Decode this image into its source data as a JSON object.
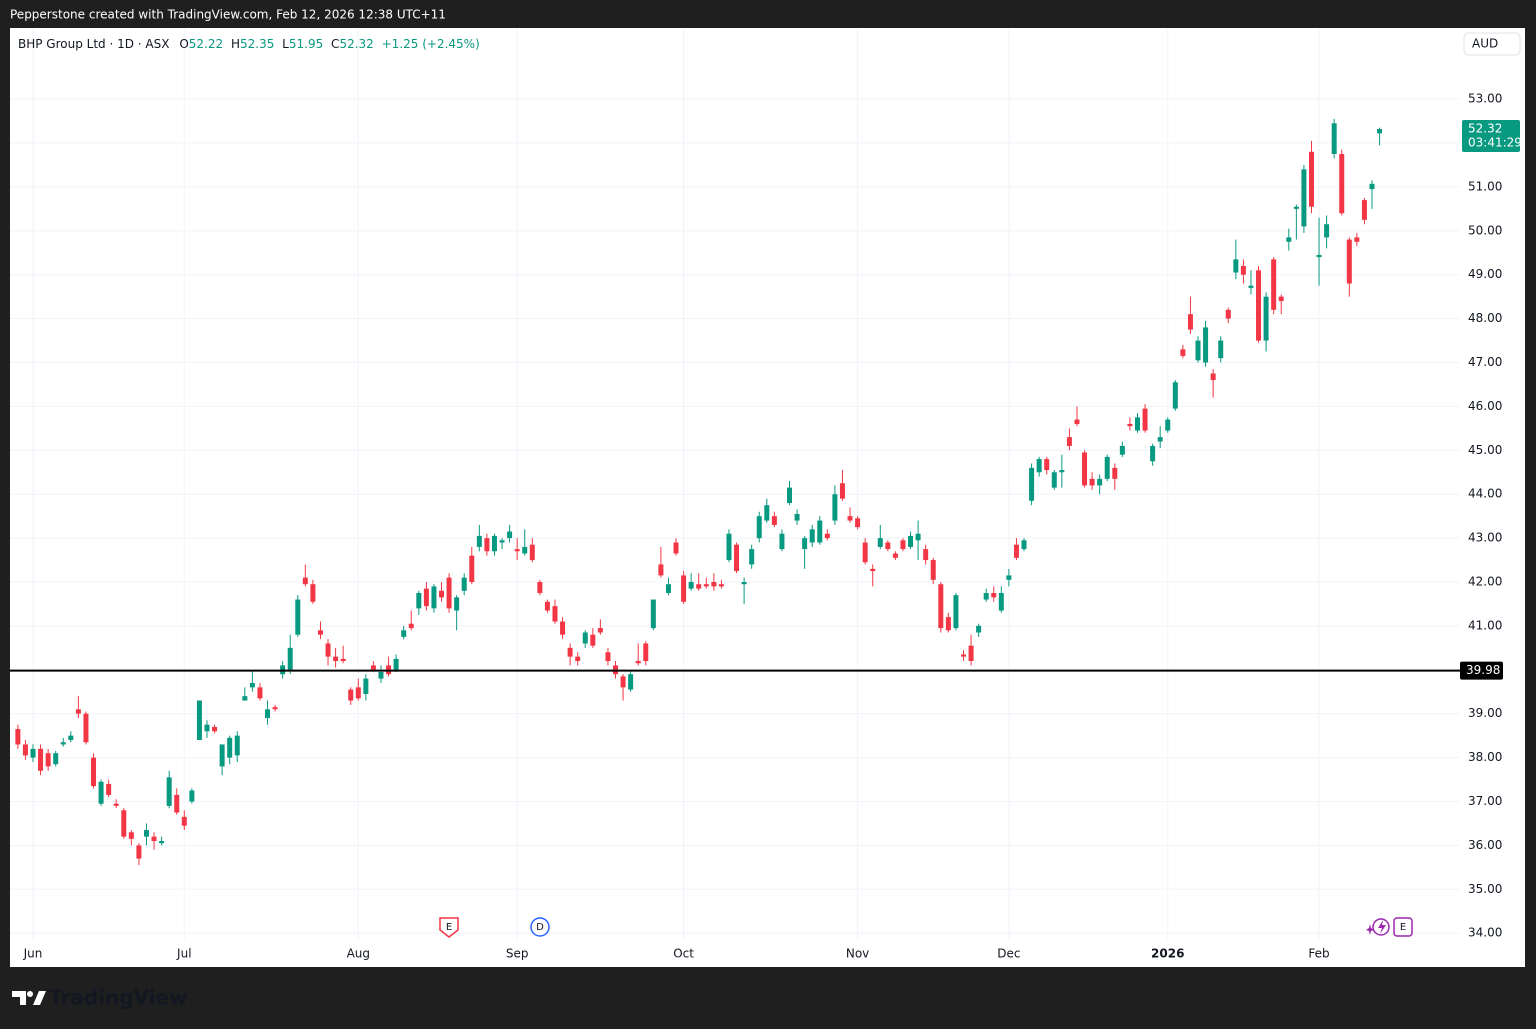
{
  "banner": "Pepperstone created with TradingView.com, Feb 12, 2026 12:38 UTC+11",
  "watermark": "TradingView",
  "chart_data": {
    "type": "candlestick",
    "title": "BHP Group Ltd · 1D · ASX",
    "legend_labels": {
      "open": "O",
      "high": "H",
      "low": "L",
      "close": "C"
    },
    "change": "+1.25 (+2.45%)",
    "currency": "AUD",
    "countdown": "03:41:29",
    "up_color": "#089981",
    "down_color": "#f23645",
    "grid": true,
    "categories": [
      null,
      null,
      "Jun",
      null,
      null,
      null,
      null,
      null,
      null,
      null,
      null,
      null,
      null,
      null,
      null,
      null,
      null,
      null,
      null,
      null,
      null,
      null,
      "Jul",
      null,
      null,
      null,
      null,
      null,
      null,
      null,
      null,
      null,
      null,
      null,
      null,
      null,
      null,
      null,
      null,
      null,
      null,
      null,
      null,
      null,
      null,
      "Aug",
      null,
      null,
      null,
      null,
      null,
      null,
      null,
      null,
      null,
      null,
      null,
      null,
      null,
      null,
      null,
      null,
      null,
      null,
      null,
      null,
      "Sep",
      null,
      null,
      null,
      null,
      null,
      null,
      null,
      null,
      null,
      null,
      null,
      null,
      null,
      null,
      null,
      null,
      null,
      null,
      null,
      null,
      null,
      "Oct",
      null,
      null,
      null,
      null,
      null,
      null,
      null,
      null,
      null,
      null,
      null,
      null,
      null,
      null,
      null,
      null,
      null,
      null,
      null,
      null,
      null,
      null,
      "Nov",
      null,
      null,
      null,
      null,
      null,
      null,
      null,
      null,
      null,
      null,
      null,
      null,
      null,
      null,
      null,
      null,
      null,
      null,
      null,
      "Dec",
      null,
      null,
      null,
      null,
      null,
      null,
      null,
      null,
      null,
      null,
      null,
      null,
      null,
      null,
      null,
      null,
      null,
      null,
      null,
      null,
      "2026",
      null,
      null,
      null,
      null,
      null,
      null,
      null,
      null,
      null,
      null,
      null,
      null,
      null,
      null,
      null,
      null,
      null,
      null,
      null,
      "Feb",
      null,
      null,
      null,
      null,
      null,
      null,
      null,
      null
    ],
    "open": [
      38.65,
      38.3,
      38.0,
      38.2,
      38.1,
      37.85,
      38.3,
      38.4,
      39.1,
      39.0,
      38.0,
      36.95,
      37.4,
      36.95,
      36.8,
      36.3,
      36.0,
      36.2,
      36.2,
      36.05,
      36.9,
      37.15,
      36.65,
      37.0,
      38.4,
      38.6,
      38.7,
      37.8,
      38.0,
      38.05,
      39.3,
      39.6,
      39.6,
      38.9,
      39.15,
      39.9,
      40.0,
      40.8,
      42.1,
      41.95,
      40.9,
      40.6,
      40.3,
      40.25,
      39.55,
      39.6,
      39.45,
      40.1,
      39.8,
      40.1,
      40.0,
      40.75,
      41.05,
      41.4,
      41.85,
      41.4,
      41.8,
      42.1,
      41.35,
      41.8,
      42.6,
      42.8,
      43.0,
      42.7,
      42.9,
      43.0,
      42.75,
      42.65,
      42.85,
      42.0,
      41.55,
      41.45,
      41.1,
      40.5,
      40.3,
      40.6,
      40.8,
      40.95,
      40.4,
      40.1,
      39.85,
      39.55,
      40.2,
      40.6,
      40.95,
      42.4,
      41.75,
      42.9,
      42.15,
      41.85,
      41.95,
      41.95,
      42.0,
      41.95,
      42.5,
      42.85,
      41.95,
      42.4,
      43.0,
      43.4,
      43.5,
      42.75,
      43.8,
      43.4,
      42.75,
      42.9,
      42.9,
      43.1,
      43.4,
      44.25,
      43.5,
      43.45,
      42.9,
      42.3,
      42.8,
      42.9,
      42.65,
      42.95,
      42.8,
      42.95,
      42.75,
      42.5,
      41.95,
      41.2,
      40.95,
      40.35,
      40.55,
      40.85,
      41.6,
      41.75,
      41.35,
      42.05,
      42.85,
      42.75,
      43.85,
      44.5,
      44.8,
      44.15,
      44.5,
      45.3,
      45.7,
      44.95,
      44.35,
      44.2,
      44.35,
      44.6,
      44.9,
      45.6,
      45.45,
      45.95,
      44.75,
      45.2,
      45.45,
      45.95,
      47.3,
      48.1,
      47.05,
      47.0,
      46.75,
      47.1,
      48.2,
      49.05,
      49.2,
      48.7,
      49.1,
      47.5,
      49.35,
      48.5,
      49.75,
      50.5,
      50.1,
      51.8,
      49.4,
      49.85,
      51.75,
      51.75,
      49.8,
      49.85,
      50.7,
      50.95,
      52.22
    ],
    "high": [
      38.75,
      38.4,
      38.3,
      38.3,
      38.2,
      38.15,
      38.45,
      38.6,
      39.4,
      39.05,
      38.1,
      37.5,
      37.5,
      37.05,
      36.85,
      36.35,
      36.05,
      36.5,
      36.3,
      36.2,
      37.7,
      37.3,
      36.8,
      37.3,
      39.3,
      38.85,
      38.75,
      38.3,
      38.5,
      38.6,
      39.6,
      40.0,
      39.7,
      39.3,
      39.2,
      40.2,
      40.8,
      41.7,
      42.4,
      42.05,
      41.1,
      40.7,
      40.5,
      40.55,
      39.6,
      39.8,
      39.9,
      40.2,
      40.1,
      40.3,
      40.35,
      41.0,
      41.35,
      41.8,
      42.0,
      41.95,
      42.0,
      42.2,
      41.7,
      42.2,
      42.8,
      43.3,
      43.1,
      43.1,
      43.0,
      43.3,
      43.0,
      43.2,
      43.0,
      42.05,
      41.6,
      41.6,
      41.2,
      40.6,
      40.4,
      40.9,
      40.95,
      41.15,
      40.5,
      40.2,
      39.9,
      40.0,
      40.6,
      40.65,
      41.6,
      42.8,
      42.1,
      43.0,
      42.25,
      42.2,
      42.2,
      42.1,
      42.2,
      42.05,
      43.2,
      42.9,
      42.1,
      42.85,
      43.6,
      43.9,
      43.6,
      43.2,
      44.3,
      43.65,
      43.05,
      43.3,
      43.5,
      43.2,
      44.2,
      44.55,
      43.7,
      43.5,
      43.0,
      42.4,
      43.3,
      42.95,
      42.7,
      43.0,
      43.15,
      43.4,
      42.85,
      42.55,
      42.0,
      41.3,
      41.75,
      40.45,
      40.8,
      41.05,
      41.85,
      41.9,
      41.9,
      42.3,
      43.0,
      43.0,
      44.7,
      44.85,
      44.85,
      44.55,
      44.9,
      45.5,
      46.0,
      45.0,
      44.5,
      44.45,
      44.9,
      44.7,
      45.2,
      45.75,
      45.85,
      46.05,
      45.15,
      45.55,
      45.75,
      46.6,
      47.4,
      48.5,
      47.6,
      47.95,
      46.85,
      47.6,
      48.25,
      49.8,
      49.35,
      49.1,
      49.2,
      48.6,
      49.4,
      48.55,
      50.05,
      50.6,
      51.5,
      52.05,
      50.3,
      50.35,
      52.55,
      51.85,
      49.85,
      49.95,
      50.75,
      51.15,
      52.35
    ],
    "low": [
      38.2,
      37.95,
      37.9,
      37.6,
      37.7,
      37.8,
      38.25,
      38.35,
      38.9,
      38.3,
      37.3,
      36.9,
      37.1,
      36.85,
      36.15,
      36.0,
      35.55,
      36.0,
      35.9,
      36.0,
      36.85,
      36.7,
      36.35,
      36.95,
      38.4,
      38.45,
      38.55,
      37.6,
      37.85,
      37.9,
      39.3,
      39.5,
      39.3,
      38.75,
      39.05,
      39.8,
      39.9,
      40.75,
      41.9,
      41.5,
      40.7,
      40.1,
      40.05,
      40.15,
      39.2,
      39.3,
      39.3,
      39.95,
      39.7,
      39.85,
      39.95,
      40.7,
      40.9,
      41.25,
      41.35,
      41.3,
      41.55,
      41.3,
      40.9,
      41.7,
      41.95,
      42.7,
      42.6,
      42.6,
      42.75,
      42.9,
      42.5,
      42.6,
      42.45,
      41.7,
      41.3,
      41.05,
      40.7,
      40.1,
      40.1,
      40.5,
      40.5,
      40.8,
      40.1,
      39.8,
      39.3,
      39.5,
      40.1,
      40.1,
      40.9,
      42.1,
      41.7,
      42.6,
      41.5,
      41.8,
      41.8,
      41.85,
      41.8,
      41.85,
      42.45,
      42.2,
      41.5,
      42.3,
      42.9,
      43.35,
      43.25,
      42.7,
      43.75,
      43.3,
      42.3,
      42.8,
      42.85,
      42.95,
      43.3,
      43.85,
      43.35,
      43.2,
      42.4,
      41.9,
      42.75,
      42.7,
      42.5,
      42.7,
      42.75,
      42.5,
      42.4,
      41.95,
      40.85,
      40.85,
      40.9,
      40.2,
      40.1,
      40.75,
      41.55,
      41.55,
      41.3,
      41.9,
      42.5,
      42.7,
      43.75,
      44.4,
      44.45,
      44.1,
      44.15,
      45.0,
      45.55,
      44.15,
      44.1,
      44.0,
      44.3,
      44.1,
      44.85,
      45.45,
      45.4,
      45.4,
      44.65,
      45.05,
      45.4,
      45.9,
      47.1,
      47.65,
      47.0,
      46.9,
      46.2,
      47.0,
      47.9,
      48.9,
      48.8,
      48.55,
      47.45,
      47.25,
      48.1,
      48.1,
      49.55,
      49.8,
      49.95,
      50.4,
      48.75,
      49.6,
      51.65,
      50.35,
      48.5,
      49.65,
      50.15,
      50.5,
      51.95
    ],
    "close": [
      38.3,
      38.05,
      38.2,
      37.7,
      37.8,
      38.1,
      38.35,
      38.5,
      39.0,
      38.35,
      37.35,
      37.45,
      37.15,
      36.9,
      36.2,
      36.15,
      35.7,
      36.35,
      36.1,
      36.1,
      37.55,
      36.75,
      36.45,
      37.25,
      39.3,
      38.75,
      38.6,
      38.3,
      38.45,
      38.5,
      39.4,
      39.7,
      39.35,
      39.1,
      39.1,
      40.1,
      40.5,
      41.6,
      41.95,
      41.55,
      40.8,
      40.3,
      40.2,
      40.2,
      39.3,
      39.35,
      39.8,
      40.0,
      39.95,
      39.9,
      40.25,
      40.9,
      40.95,
      41.75,
      41.45,
      41.9,
      41.65,
      41.4,
      41.65,
      42.1,
      42.0,
      43.05,
      42.7,
      43.05,
      42.95,
      43.15,
      42.7,
      42.8,
      42.5,
      41.75,
      41.35,
      41.1,
      40.8,
      40.3,
      40.2,
      40.85,
      40.55,
      40.85,
      40.2,
      39.9,
      39.6,
      39.9,
      40.15,
      40.2,
      41.6,
      42.15,
      41.95,
      42.65,
      41.55,
      42.0,
      41.85,
      41.9,
      41.9,
      41.9,
      43.1,
      42.25,
      42.0,
      42.75,
      43.5,
      43.75,
      43.3,
      43.1,
      44.15,
      43.55,
      43.0,
      43.2,
      43.4,
      43.0,
      44.0,
      43.9,
      43.4,
      43.25,
      42.45,
      42.25,
      43.0,
      42.75,
      42.55,
      42.75,
      43.05,
      43.1,
      42.5,
      42.05,
      40.95,
      40.9,
      41.7,
      40.3,
      40.2,
      41.0,
      41.75,
      41.65,
      41.75,
      42.15,
      42.55,
      42.95,
      44.6,
      44.8,
      44.55,
      44.5,
      44.55,
      45.1,
      45.6,
      44.2,
      44.2,
      44.35,
      44.85,
      44.35,
      45.1,
      45.55,
      45.75,
      45.45,
      45.1,
      45.3,
      45.7,
      46.55,
      47.15,
      47.75,
      47.5,
      47.8,
      46.6,
      47.5,
      48.0,
      49.35,
      49.0,
      48.75,
      47.5,
      48.5,
      48.2,
      48.4,
      49.85,
      50.55,
      51.4,
      50.55,
      49.45,
      50.15,
      52.45,
      50.4,
      48.8,
      49.75,
      50.25,
      51.07,
      52.32
    ],
    "ylim": [
      33.23,
      54.62
    ],
    "yticks": [
      {
        "value": 34,
        "label": "34.00"
      },
      {
        "value": 35,
        "label": "35.00"
      },
      {
        "value": 36,
        "label": "36.00"
      },
      {
        "value": 37,
        "label": "37.00"
      },
      {
        "value": 38,
        "label": "38.00"
      },
      {
        "value": 39,
        "label": "39.00"
      },
      {
        "value": 40,
        "label": "40.00"
      },
      {
        "value": 41,
        "label": "41.00"
      },
      {
        "value": 42,
        "label": "42.00"
      },
      {
        "value": 43,
        "label": "43.00"
      },
      {
        "value": 44,
        "label": "44.00"
      },
      {
        "value": 45,
        "label": "45.00"
      },
      {
        "value": 46,
        "label": "46.00"
      },
      {
        "value": 47,
        "label": "47.00"
      },
      {
        "value": 48,
        "label": "48.00"
      },
      {
        "value": 49,
        "label": "49.00"
      },
      {
        "value": 50,
        "label": "50.00"
      },
      {
        "value": 51,
        "label": "51.00"
      },
      {
        "value": 52,
        "label": "52.00"
      },
      {
        "value": 53,
        "label": "53.00"
      }
    ],
    "hline": 39.98,
    "hline_color": "#000000",
    "events": [
      "E",
      "D",
      "E"
    ]
  }
}
